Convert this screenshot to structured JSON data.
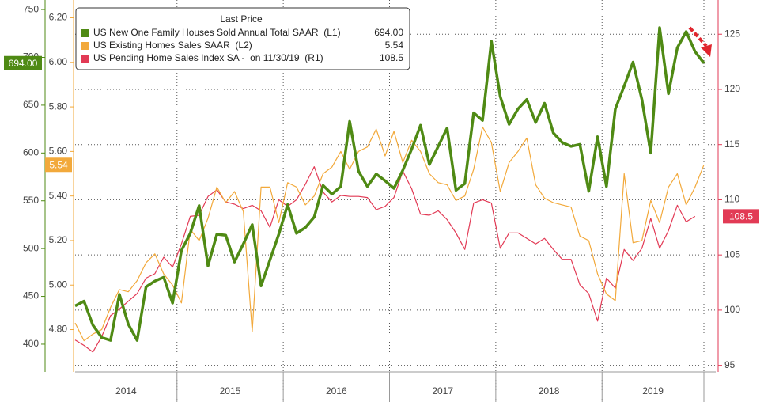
{
  "chart_data": {
    "type": "line",
    "legend_title": "Last Price",
    "categories": [
      "2014",
      "2015",
      "2016",
      "2017",
      "2018",
      "2019"
    ],
    "ylim": [
      371,
      760
    ],
    "yticks": [
      400,
      450,
      500,
      550,
      600,
      650,
      700,
      750
    ],
    "y3lim": [
      4.61,
      6.28
    ],
    "y3ticks": [
      {
        "value": 4.8,
        "label": "4.80"
      },
      {
        "value": 5.0,
        "label": "5.00"
      },
      {
        "value": 5.2,
        "label": "5.20"
      },
      {
        "value": 5.4,
        "label": "5.40"
      },
      {
        "value": 5.6,
        "label": "5.60"
      },
      {
        "value": 5.8,
        "label": "5.80"
      },
      {
        "value": 6.0,
        "label": "6.00"
      },
      {
        "value": 6.2,
        "label": "6.20"
      }
    ],
    "y2lim": [
      94.4,
      128.1
    ],
    "y2ticks": [
      95,
      100,
      105,
      110,
      115,
      120,
      125
    ],
    "grid": "y2",
    "series": [
      {
        "name": "US New One Family Houses Sold Annual Total SAAR  (L1)",
        "color": "#4f8a14",
        "axis": "y",
        "last_label": "694.00",
        "values": [
          [
            440,
            445,
            420,
            407,
            404,
            452,
            421,
            404,
            460,
            466,
            470,
            443
          ],
          [
            498,
            516,
            545,
            482,
            515,
            514,
            486,
            505,
            525,
            461,
            488,
            515
          ],
          [
            546,
            516,
            522,
            533,
            566,
            557,
            565,
            633,
            581,
            565,
            578,
            571
          ],
          [
            563,
            582,
            604,
            629,
            588,
            607,
            626,
            561,
            568,
            642,
            634,
            717
          ],
          [
            659,
            630,
            646,
            656,
            632,
            652,
            621,
            611,
            607,
            609,
            560,
            617
          ],
          [
            565,
            646,
            670,
            695,
            656,
            600,
            731,
            662,
            710,
            727,
            706,
            694
          ]
        ]
      },
      {
        "name": "US Existing Homes Sales SAAR  (L2)",
        "color": "#f2a93b",
        "axis": "y3",
        "last_label": "5.54",
        "values": [
          [
            4.83,
            4.75,
            4.78,
            4.8,
            4.9,
            4.98,
            4.97,
            5.02,
            5.1,
            5.14,
            5.05,
            5.0
          ],
          [
            4.92,
            5.25,
            5.2,
            5.3,
            5.44,
            5.37,
            5.42,
            5.33,
            4.79,
            5.44,
            5.44,
            5.28
          ],
          [
            5.46,
            5.44,
            5.36,
            5.4,
            5.5,
            5.53,
            5.6,
            5.52,
            5.6,
            5.62,
            5.7,
            5.58
          ],
          [
            5.69,
            5.55,
            5.65,
            5.6,
            5.5,
            5.46,
            5.45,
            5.38,
            5.4,
            5.52,
            5.71,
            5.64
          ],
          [
            5.42,
            5.55,
            5.6,
            5.66,
            5.45,
            5.39,
            5.37,
            5.36,
            5.35,
            5.22,
            5.2,
            5.05
          ],
          [
            4.96,
            4.93,
            5.5,
            5.19,
            5.2,
            5.38,
            5.28,
            5.44,
            5.5,
            5.36,
            5.44,
            5.54
          ]
        ]
      },
      {
        "name": "US Pending Home Sales Index SA -  on 11/30/19  (R1)",
        "color": "#e23a55",
        "axis": "y2",
        "last_label": "108.5",
        "values": [
          [
            97.3,
            96.8,
            96.2,
            97.6,
            99.5,
            100.1,
            100.8,
            101.5,
            102.9,
            103.3,
            104.8,
            103.9
          ],
          [
            106.0,
            108.5,
            108.6,
            110.3,
            110.9,
            109.8,
            109.6,
            109.2,
            109.5,
            109.0,
            107.5,
            110.0
          ],
          [
            109.4,
            110.0,
            111.4,
            113.0,
            110.7,
            109.8,
            110.4,
            110.3,
            110.3,
            110.2,
            109.1,
            109.4
          ],
          [
            110.2,
            112.6,
            111.0,
            108.7,
            108.6,
            109.0,
            108.2,
            107.0,
            105.5,
            109.7,
            110.0,
            109.7
          ],
          [
            105.6,
            107.0,
            107.0,
            106.5,
            106.0,
            106.5,
            105.5,
            104.6,
            104.6,
            102.3,
            101.5,
            99.0
          ],
          [
            102.9,
            102.0,
            105.5,
            104.5,
            105.6,
            108.3,
            105.6,
            107.2,
            109.5,
            108.0,
            108.5
          ]
        ]
      }
    ]
  }
}
